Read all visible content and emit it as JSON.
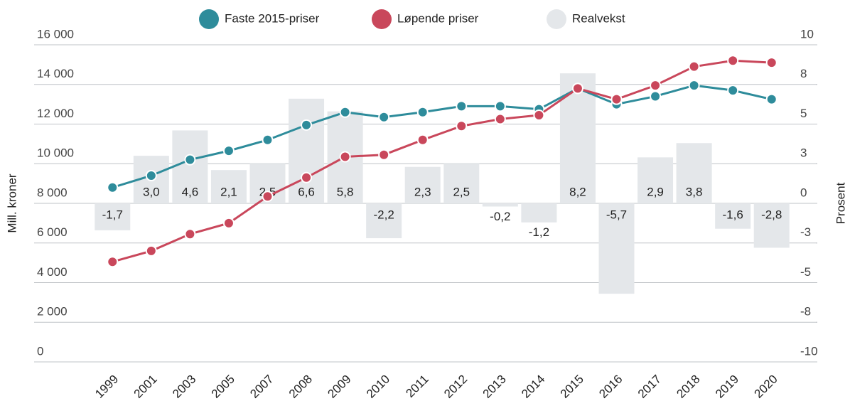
{
  "chart_data": {
    "type": "combo",
    "categories": [
      "1999",
      "2001",
      "2003",
      "2005",
      "2007",
      "2008",
      "2009",
      "2010",
      "2011",
      "2012",
      "2013",
      "2014",
      "2015",
      "2016",
      "2017",
      "2018",
      "2019",
      "2020"
    ],
    "series": [
      {
        "name": "Realvekst",
        "type": "bar",
        "axis": "y2",
        "color": "#e4e7ea",
        "values": [
          -1.7,
          3.0,
          4.6,
          2.1,
          2.5,
          6.6,
          5.8,
          -2.2,
          2.3,
          2.5,
          -0.2,
          -1.2,
          8.2,
          -5.7,
          2.9,
          3.8,
          -1.6,
          -2.8
        ],
        "value_labels": [
          "-1,7",
          "3,0",
          "4,6",
          "2,1",
          "2,5",
          "6,6",
          "5,8",
          "-2,2",
          "2,3",
          "2,5",
          "-0,2",
          "-1,2",
          "8,2",
          "-5,7",
          "2,9",
          "3,8",
          "-1,6",
          "-2,8"
        ]
      },
      {
        "name": "Faste 2015-priser",
        "type": "line",
        "color": "#2e8c9b",
        "values": [
          8800,
          9400,
          10200,
          10650,
          11200,
          11950,
          12600,
          12350,
          12600,
          12900,
          12900,
          12750,
          13800,
          13000,
          13400,
          13950,
          13700,
          13250
        ]
      },
      {
        "name": "Løpende priser",
        "type": "line",
        "color": "#c9475b",
        "values": [
          5050,
          5600,
          6450,
          7000,
          8350,
          9300,
          10350,
          10450,
          11200,
          11900,
          12250,
          12450,
          13800,
          13250,
          13950,
          14900,
          15200,
          15100
        ]
      }
    ],
    "legend_order": [
      1,
      2,
      0
    ],
    "ylabel": "Mill. kroner",
    "y2label": "Prosent",
    "ylim": [
      0,
      16000
    ],
    "yticks": [
      {
        "value": 0,
        "label": "0"
      },
      {
        "value": 2000,
        "label": "2 000"
      },
      {
        "value": 4000,
        "label": "4 000"
      },
      {
        "value": 6000,
        "label": "6 000"
      },
      {
        "value": 8000,
        "label": "8 000"
      },
      {
        "value": 10000,
        "label": "10 000"
      },
      {
        "value": 12000,
        "label": "12 000"
      },
      {
        "value": 14000,
        "label": "14 000"
      },
      {
        "value": 16000,
        "label": "16 000"
      }
    ],
    "y2lim": [
      -10,
      10
    ],
    "y2ticks": [
      -10,
      {
        "value": -7.5,
        "label": "-8"
      },
      -5,
      {
        "value": -2.5,
        "label": "-3"
      },
      0,
      {
        "value": 2.5,
        "label": "3"
      },
      5,
      {
        "value": 7.5,
        "label": "8"
      },
      10
    ],
    "grid": true,
    "legend": "top"
  }
}
